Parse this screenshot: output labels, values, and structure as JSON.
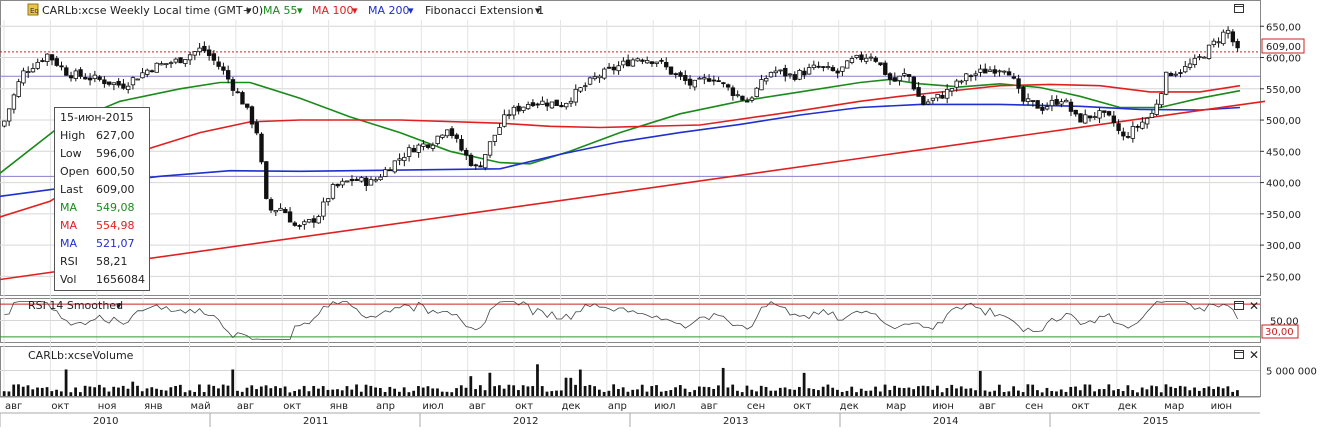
{
  "header": {
    "symbol_label": "CARLb:xcse Weekly Local time (GMT+0)",
    "ma55_label": "MA 55",
    "ma100_label": "MA 100",
    "ma200_label": "MA 200",
    "fib_label": "Fibonacci Extension 1",
    "rsi_label": "RSI 14 Smoothed",
    "volume_label": "CARLb:xcseVolume"
  },
  "info_box": {
    "date": "15-июн-2015",
    "rows": [
      {
        "k": "High",
        "v": "627,00",
        "color": "#222222"
      },
      {
        "k": "Low",
        "v": "596,00",
        "color": "#222222"
      },
      {
        "k": "Open",
        "v": "600,50",
        "color": "#222222"
      },
      {
        "k": "Last",
        "v": "609,00",
        "color": "#222222"
      },
      {
        "k": "MA",
        "v": "549,08",
        "color": "#1a8a1a"
      },
      {
        "k": "MA",
        "v": "554,98",
        "color": "#e02020"
      },
      {
        "k": "MA",
        "v": "521,07",
        "color": "#1f2fd0"
      },
      {
        "k": "RSI",
        "v": "58,21",
        "color": "#222222"
      },
      {
        "k": "Vol",
        "v": "1656084",
        "color": "#222222"
      }
    ]
  },
  "colors": {
    "ma55": "#1a8a1a",
    "ma100": "#e02020",
    "ma200": "#1f2fd0",
    "fib": "#e02020",
    "up_candle": "#ffffff",
    "down_candle": "#111111",
    "last_price_badge": "#ffffff",
    "rsi_line": "#444444"
  },
  "chart_data": [
    {
      "type": "candlestick",
      "name": "price",
      "timeframe": "Weekly",
      "ylim": [
        225,
        660
      ],
      "yticks": [
        "650,00",
        "600,00",
        "550,00",
        "500,00",
        "450,00",
        "400,00",
        "350,00",
        "300,00",
        "250,00"
      ],
      "last_price_label": "609,00",
      "last_price": 609,
      "horizontal_levels": [
        570,
        410
      ],
      "x_month_labels": [
        "авг",
        "окт",
        "ноя",
        "янв",
        "май",
        "авг",
        "окт",
        "янв",
        "апр",
        "июл",
        "авг",
        "окт",
        "дек",
        "апр",
        "июл",
        "авг",
        "сен",
        "окт",
        "дек",
        "мар",
        "июн",
        "авг",
        "сен",
        "окт",
        "дек",
        "мар",
        "июн"
      ],
      "x_year_labels": [
        "2010",
        "2011",
        "2012",
        "2013",
        "2014",
        "2015"
      ],
      "close_path": [
        {
          "x": 0,
          "v": 490
        },
        {
          "x": 20,
          "v": 575
        },
        {
          "x": 45,
          "v": 605
        },
        {
          "x": 65,
          "v": 575
        },
        {
          "x": 95,
          "v": 565
        },
        {
          "x": 120,
          "v": 555
        },
        {
          "x": 150,
          "v": 585
        },
        {
          "x": 175,
          "v": 595
        },
        {
          "x": 200,
          "v": 615
        },
        {
          "x": 220,
          "v": 580
        },
        {
          "x": 240,
          "v": 530
        },
        {
          "x": 255,
          "v": 480
        },
        {
          "x": 265,
          "v": 355
        },
        {
          "x": 280,
          "v": 360
        },
        {
          "x": 295,
          "v": 325
        },
        {
          "x": 315,
          "v": 345
        },
        {
          "x": 330,
          "v": 390
        },
        {
          "x": 350,
          "v": 405
        },
        {
          "x": 370,
          "v": 400
        },
        {
          "x": 390,
          "v": 430
        },
        {
          "x": 410,
          "v": 455
        },
        {
          "x": 430,
          "v": 465
        },
        {
          "x": 445,
          "v": 490
        },
        {
          "x": 460,
          "v": 450
        },
        {
          "x": 475,
          "v": 420
        },
        {
          "x": 490,
          "v": 470
        },
        {
          "x": 505,
          "v": 510
        },
        {
          "x": 530,
          "v": 530
        },
        {
          "x": 560,
          "v": 525
        },
        {
          "x": 575,
          "v": 545
        },
        {
          "x": 595,
          "v": 570
        },
        {
          "x": 615,
          "v": 585
        },
        {
          "x": 635,
          "v": 600
        },
        {
          "x": 655,
          "v": 595
        },
        {
          "x": 670,
          "v": 575
        },
        {
          "x": 690,
          "v": 555
        },
        {
          "x": 710,
          "v": 570
        },
        {
          "x": 730,
          "v": 545
        },
        {
          "x": 745,
          "v": 530
        },
        {
          "x": 770,
          "v": 580
        },
        {
          "x": 790,
          "v": 570
        },
        {
          "x": 815,
          "v": 585
        },
        {
          "x": 835,
          "v": 575
        },
        {
          "x": 850,
          "v": 595
        },
        {
          "x": 870,
          "v": 605
        },
        {
          "x": 890,
          "v": 560
        },
        {
          "x": 905,
          "v": 575
        },
        {
          "x": 920,
          "v": 525
        },
        {
          "x": 940,
          "v": 540
        },
        {
          "x": 965,
          "v": 570
        },
        {
          "x": 985,
          "v": 580
        },
        {
          "x": 1005,
          "v": 585
        },
        {
          "x": 1020,
          "v": 530
        },
        {
          "x": 1040,
          "v": 520
        },
        {
          "x": 1060,
          "v": 535
        },
        {
          "x": 1075,
          "v": 500
        },
        {
          "x": 1095,
          "v": 510
        },
        {
          "x": 1110,
          "v": 500
        },
        {
          "x": 1120,
          "v": 470
        },
        {
          "x": 1135,
          "v": 490
        },
        {
          "x": 1150,
          "v": 510
        },
        {
          "x": 1165,
          "v": 575
        },
        {
          "x": 1180,
          "v": 580
        },
        {
          "x": 1195,
          "v": 595
        },
        {
          "x": 1210,
          "v": 620
        },
        {
          "x": 1225,
          "v": 645
        },
        {
          "x": 1235,
          "v": 609
        }
      ],
      "series": [
        {
          "name": "MA 55",
          "color": "#1a8a1a",
          "points": [
            {
              "x": 0,
              "v": 415
            },
            {
              "x": 60,
              "v": 490
            },
            {
              "x": 120,
              "v": 530
            },
            {
              "x": 180,
              "v": 550
            },
            {
              "x": 220,
              "v": 560
            },
            {
              "x": 250,
              "v": 560
            },
            {
              "x": 300,
              "v": 535
            },
            {
              "x": 350,
              "v": 505
            },
            {
              "x": 400,
              "v": 480
            },
            {
              "x": 450,
              "v": 450
            },
            {
              "x": 500,
              "v": 432
            },
            {
              "x": 530,
              "v": 430
            },
            {
              "x": 570,
              "v": 450
            },
            {
              "x": 620,
              "v": 480
            },
            {
              "x": 680,
              "v": 510
            },
            {
              "x": 740,
              "v": 530
            },
            {
              "x": 800,
              "v": 545
            },
            {
              "x": 860,
              "v": 560
            },
            {
              "x": 890,
              "v": 565
            },
            {
              "x": 920,
              "v": 558
            },
            {
              "x": 960,
              "v": 553
            },
            {
              "x": 1000,
              "v": 558
            },
            {
              "x": 1040,
              "v": 552
            },
            {
              "x": 1080,
              "v": 538
            },
            {
              "x": 1120,
              "v": 520
            },
            {
              "x": 1160,
              "v": 520
            },
            {
              "x": 1200,
              "v": 535
            },
            {
              "x": 1240,
              "v": 547
            }
          ]
        },
        {
          "name": "MA 100",
          "color": "#e02020",
          "points": [
            {
              "x": 0,
              "v": 345
            },
            {
              "x": 50,
              "v": 370
            },
            {
              "x": 100,
              "v": 420
            },
            {
              "x": 150,
              "v": 455
            },
            {
              "x": 200,
              "v": 480
            },
            {
              "x": 250,
              "v": 497
            },
            {
              "x": 300,
              "v": 500
            },
            {
              "x": 400,
              "v": 500
            },
            {
              "x": 500,
              "v": 495
            },
            {
              "x": 550,
              "v": 490
            },
            {
              "x": 600,
              "v": 488
            },
            {
              "x": 700,
              "v": 492
            },
            {
              "x": 800,
              "v": 515
            },
            {
              "x": 860,
              "v": 530
            },
            {
              "x": 900,
              "v": 538
            },
            {
              "x": 960,
              "v": 548
            },
            {
              "x": 1000,
              "v": 555
            },
            {
              "x": 1050,
              "v": 557
            },
            {
              "x": 1100,
              "v": 555
            },
            {
              "x": 1150,
              "v": 545
            },
            {
              "x": 1200,
              "v": 545
            },
            {
              "x": 1240,
              "v": 555
            }
          ]
        },
        {
          "name": "MA 200",
          "color": "#1f2fd0",
          "points": [
            {
              "x": 0,
              "v": 378
            },
            {
              "x": 80,
              "v": 395
            },
            {
              "x": 160,
              "v": 410
            },
            {
              "x": 230,
              "v": 419
            },
            {
              "x": 300,
              "v": 418
            },
            {
              "x": 400,
              "v": 420
            },
            {
              "x": 500,
              "v": 422
            },
            {
              "x": 560,
              "v": 445
            },
            {
              "x": 620,
              "v": 465
            },
            {
              "x": 680,
              "v": 480
            },
            {
              "x": 740,
              "v": 493
            },
            {
              "x": 800,
              "v": 508
            },
            {
              "x": 860,
              "v": 520
            },
            {
              "x": 920,
              "v": 525
            },
            {
              "x": 1000,
              "v": 525
            },
            {
              "x": 1080,
              "v": 522
            },
            {
              "x": 1140,
              "v": 517
            },
            {
              "x": 1200,
              "v": 516
            },
            {
              "x": 1240,
              "v": 520
            }
          ]
        },
        {
          "name": "Fibonacci Extension 1",
          "color": "#e02020",
          "points": [
            {
              "x": 0,
              "v": 245
            },
            {
              "x": 1265,
              "v": 530
            }
          ]
        }
      ]
    },
    {
      "type": "line",
      "name": "RSI 14 Smoothed",
      "ylim": [
        25,
        75
      ],
      "yticks": [
        "50,00"
      ],
      "level_label": "30,00",
      "level": 30
    },
    {
      "type": "bar",
      "name": "Volume",
      "yticks": [
        "5 000 000"
      ],
      "ylim": [
        0,
        9000000
      ]
    }
  ]
}
